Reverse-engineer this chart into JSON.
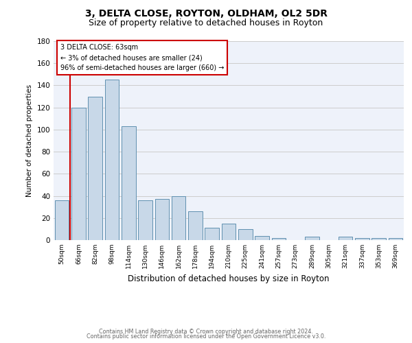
{
  "title1": "3, DELTA CLOSE, ROYTON, OLDHAM, OL2 5DR",
  "title2": "Size of property relative to detached houses in Royton",
  "xlabel": "Distribution of detached houses by size in Royton",
  "ylabel": "Number of detached properties",
  "bar_color": "#c8d8e8",
  "bar_edge_color": "#6090b0",
  "background_color": "#eef2fa",
  "categories": [
    "50sqm",
    "66sqm",
    "82sqm",
    "98sqm",
    "114sqm",
    "130sqm",
    "146sqm",
    "162sqm",
    "178sqm",
    "194sqm",
    "210sqm",
    "225sqm",
    "241sqm",
    "257sqm",
    "273sqm",
    "289sqm",
    "305sqm",
    "321sqm",
    "337sqm",
    "353sqm",
    "369sqm"
  ],
  "values": [
    36,
    120,
    130,
    145,
    103,
    36,
    37,
    40,
    26,
    11,
    15,
    10,
    4,
    2,
    0,
    3,
    0,
    3,
    2,
    2,
    2
  ],
  "ylim": [
    0,
    180
  ],
  "yticks": [
    0,
    20,
    40,
    60,
    80,
    100,
    120,
    140,
    160,
    180
  ],
  "annotation_text1": "3 DELTA CLOSE: 63sqm",
  "annotation_text2": "← 3% of detached houses are smaller (24)",
  "annotation_text3": "96% of semi-detached houses are larger (660) →",
  "footer1": "Contains HM Land Registry data © Crown copyright and database right 2024.",
  "footer2": "Contains public sector information licensed under the Open Government Licence v3.0.",
  "grid_color": "#cccccc",
  "marker_color": "#cc0000",
  "title_fontsize": 10,
  "subtitle_fontsize": 9,
  "bar_width": 0.85
}
